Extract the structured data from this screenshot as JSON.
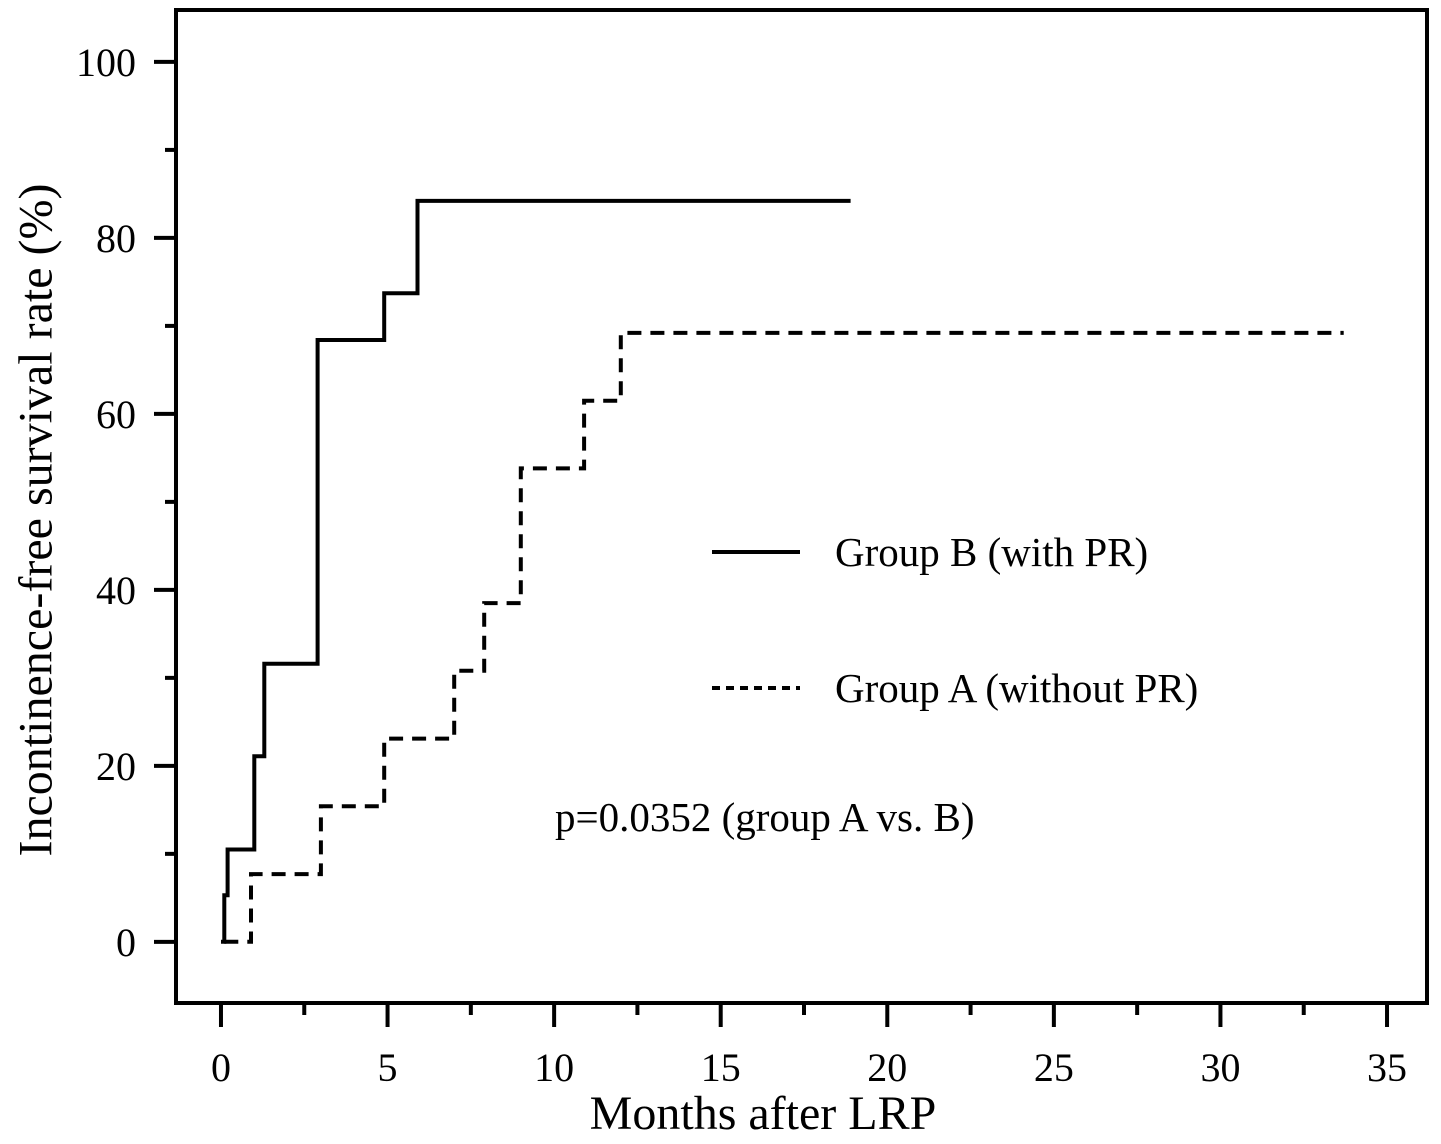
{
  "figure": {
    "ylabel": "Incontinence-free survival rate (%)",
    "xlabel": "Months after LRP",
    "p_annotation": "p=0.0352 (group A vs. B)",
    "legend": [
      {
        "label": "Group B (with PR)",
        "style": "solid"
      },
      {
        "label": "Group A (without PR)",
        "style": "dashed"
      }
    ],
    "line_color": "#000000",
    "background_color": "#ffffff"
  },
  "chart_data": {
    "type": "line",
    "subtype": "kaplan-meier-step",
    "title": "",
    "xlabel": "Months after LRP",
    "ylabel": "Incontinence-free survival rate (%)",
    "xlim": [
      -1.35,
      36.2
    ],
    "ylim": [
      -6.95,
      105.9
    ],
    "x_major_ticks": [
      0,
      5,
      10,
      15,
      20,
      25,
      30,
      35
    ],
    "x_tick_labels": [
      "0",
      "5",
      "10",
      "15",
      "20",
      "25",
      "30",
      "35"
    ],
    "x_minor_ticks": [
      2.5,
      7.5,
      12.5,
      17.5,
      22.5,
      27.5,
      32.5
    ],
    "y_major_ticks": [
      0,
      20,
      40,
      60,
      80,
      100
    ],
    "y_tick_labels": [
      "0",
      "20",
      "40",
      "60",
      "80",
      "100"
    ],
    "y_minor_ticks": [
      10,
      30,
      50,
      70,
      90
    ],
    "grid": false,
    "legend_position": "inside-right-center",
    "annotations": [
      {
        "text": "p=0.0352 (group A vs. B)",
        "x_month": 10,
        "y_percent": 14
      }
    ],
    "series": [
      {
        "name": "Group B (with PR)",
        "line_style": "solid",
        "points": [
          [
            0,
            0
          ],
          [
            0.1,
            0
          ],
          [
            0.1,
            5.3
          ],
          [
            0.2,
            5.3
          ],
          [
            0.2,
            10.5
          ],
          [
            1.0,
            10.5
          ],
          [
            1.0,
            21.1
          ],
          [
            1.3,
            21.1
          ],
          [
            1.3,
            31.6
          ],
          [
            2.9,
            31.6
          ],
          [
            2.9,
            68.4
          ],
          [
            4.9,
            68.4
          ],
          [
            4.9,
            73.7
          ],
          [
            5.9,
            73.7
          ],
          [
            5.9,
            84.2
          ],
          [
            18.9,
            84.2
          ]
        ]
      },
      {
        "name": "Group A (without PR)",
        "line_style": "dashed",
        "points": [
          [
            0.1,
            0
          ],
          [
            0.9,
            0
          ],
          [
            0.9,
            7.7
          ],
          [
            3.0,
            7.7
          ],
          [
            3.0,
            15.4
          ],
          [
            4.9,
            15.4
          ],
          [
            4.9,
            23.1
          ],
          [
            7.0,
            23.1
          ],
          [
            7.0,
            30.8
          ],
          [
            7.9,
            30.8
          ],
          [
            7.9,
            38.5
          ],
          [
            9.0,
            38.5
          ],
          [
            9.0,
            53.8
          ],
          [
            10.9,
            53.8
          ],
          [
            10.9,
            61.5
          ],
          [
            12.0,
            61.5
          ],
          [
            12.0,
            69.2
          ],
          [
            33.7,
            69.2
          ]
        ]
      }
    ]
  }
}
